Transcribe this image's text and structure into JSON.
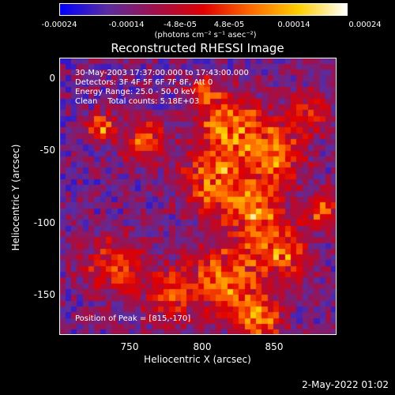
{
  "colorbar": {
    "ticks": [
      "-0.00024",
      "-0.00014",
      "-4.8e-05",
      "4.8e-05",
      "0.00014",
      "0.00024"
    ],
    "unit": "(photons cm⁻² s⁻¹ asec⁻²)",
    "colors": [
      "#0000ff",
      "#5b2ca0",
      "#a0104a",
      "#e00000",
      "#ff6a00",
      "#ffd000",
      "#ffffff"
    ]
  },
  "title": "Reconstructed RHESSI Image",
  "info": {
    "line1": "30-May-2003 17:37:00.000 to 17:43:00.000",
    "line2": "Detectors: 3F 4F 5F 6F 7F 8F, Att 0",
    "line3": "Energy Range: 25.0 - 50.0 keV",
    "line4": "Clean    Total counts: 5.18E+03"
  },
  "peak": "Position of Peak = [815,-170]",
  "axes": {
    "xlabel": "Heliocentric X (arcsec)",
    "ylabel": "Heliocentric Y (arcsec)",
    "xticks": [
      "750",
      "800",
      "850"
    ],
    "yticks": [
      "0",
      "-50",
      "-100",
      "-150"
    ]
  },
  "timestamp": "2-May-2022 01:02"
}
